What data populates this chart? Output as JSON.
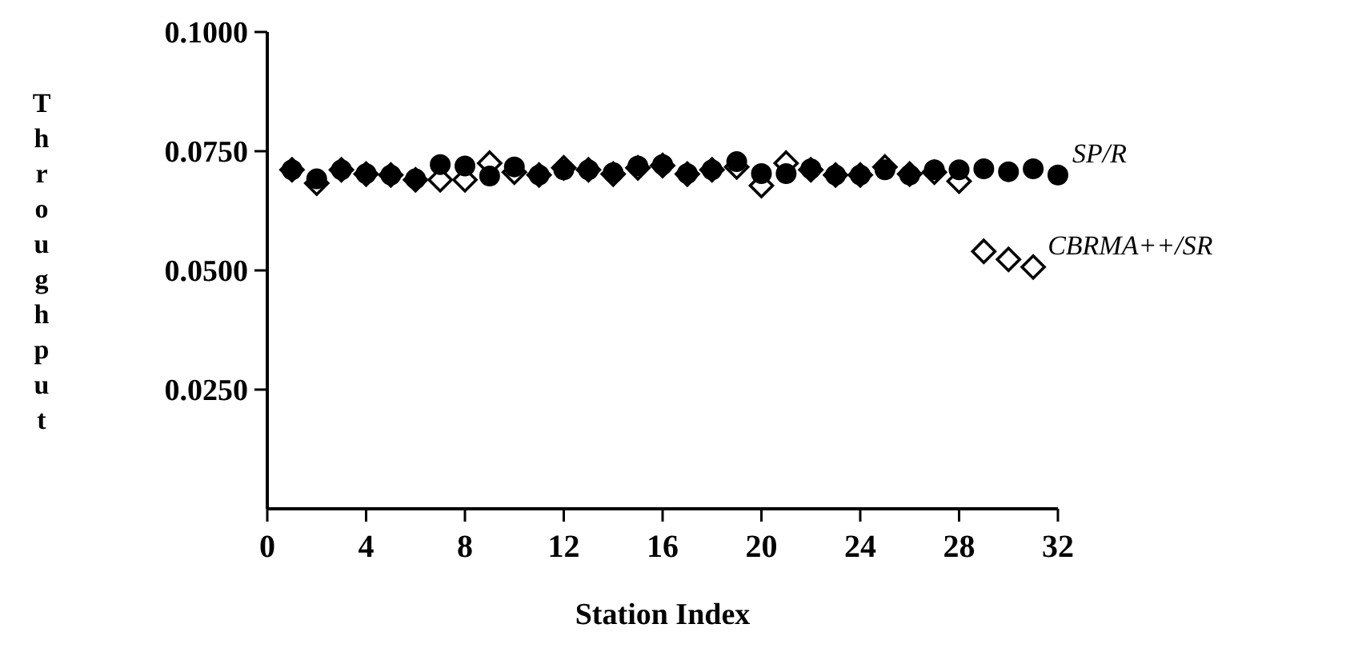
{
  "chart_data": {
    "type": "scatter",
    "xlabel": "Station Index",
    "ylabel": "Throughput",
    "xlim": [
      0,
      32
    ],
    "xticks": [
      0,
      4,
      8,
      12,
      16,
      20,
      24,
      28,
      32
    ],
    "ylim": [
      0,
      0.1
    ],
    "yticks": [
      {
        "value": 0.025,
        "label": "0.0250"
      },
      {
        "value": 0.05,
        "label": "0.0500"
      },
      {
        "value": 0.075,
        "label": "0.0750"
      },
      {
        "value": 0.1,
        "label": "0.1000"
      }
    ],
    "grid": false,
    "legend": false,
    "series": [
      {
        "name": "SP/R",
        "color": "#000000",
        "marker": "circle",
        "x": [
          1,
          2,
          3,
          4,
          5,
          6,
          7,
          8,
          9,
          10,
          11,
          12,
          13,
          14,
          15,
          16,
          17,
          18,
          19,
          20,
          21,
          22,
          23,
          24,
          25,
          26,
          27,
          28,
          29,
          30,
          31,
          32
        ],
        "values": [
          0.0711,
          0.0692,
          0.0711,
          0.0703,
          0.07,
          0.0692,
          0.0722,
          0.0719,
          0.0698,
          0.0717,
          0.07,
          0.0711,
          0.0711,
          0.0705,
          0.0719,
          0.0722,
          0.0703,
          0.0711,
          0.0728,
          0.0703,
          0.0703,
          0.0713,
          0.07,
          0.07,
          0.0711,
          0.07,
          0.0711,
          0.0711,
          0.0713,
          0.0707,
          0.0713,
          0.07
        ]
      },
      {
        "name": "CBRMA++/SR",
        "color": "#000000",
        "marker": "diamond",
        "x": [
          1,
          2,
          3,
          4,
          5,
          6,
          7,
          8,
          9,
          10,
          11,
          12,
          13,
          14,
          15,
          16,
          17,
          18,
          19,
          20,
          21,
          22,
          23,
          24,
          25,
          26,
          27,
          28,
          29,
          30,
          31
        ],
        "values": [
          0.0711,
          0.0683,
          0.0711,
          0.0702,
          0.07,
          0.069,
          0.069,
          0.069,
          0.0725,
          0.0706,
          0.07,
          0.0715,
          0.0711,
          0.0702,
          0.0715,
          0.072,
          0.0702,
          0.0711,
          0.0717,
          0.0678,
          0.0725,
          0.0711,
          0.07,
          0.07,
          0.0717,
          0.0702,
          0.0706,
          0.0687,
          0.054,
          0.0523,
          0.0507
        ]
      }
    ]
  }
}
